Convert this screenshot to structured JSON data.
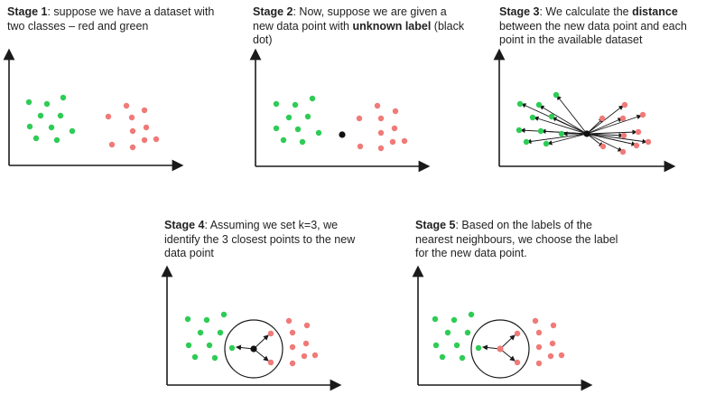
{
  "colors": {
    "green": "#2ecc55",
    "red": "#f07a78",
    "unknown": "#111111",
    "axis": "#1a1a1a"
  },
  "stages": [
    {
      "id": "stage1",
      "label": "Stage 1",
      "pre": ": suppose we have a dataset with two classes – red and green",
      "bold": "",
      "post": ""
    },
    {
      "id": "stage2",
      "label": "Stage 2",
      "pre": ": Now, suppose we are given a new data point with ",
      "bold": "unknown label",
      "post": " (black dot)"
    },
    {
      "id": "stage3",
      "label": "Stage 3",
      "pre": ": We calculate the ",
      "bold": "distance",
      "post": " between the new data point and each point in the available dataset"
    },
    {
      "id": "stage4",
      "label": "Stage 4",
      "pre": ": Assuming we set k=3, we identify the 3 closest points to the new data point",
      "bold": "",
      "post": ""
    },
    {
      "id": "stage5",
      "label": "Stage 5",
      "pre": ": Based on the labels of the nearest neighbours, we choose the label for the new data point.",
      "bold": "",
      "post": ""
    }
  ]
}
